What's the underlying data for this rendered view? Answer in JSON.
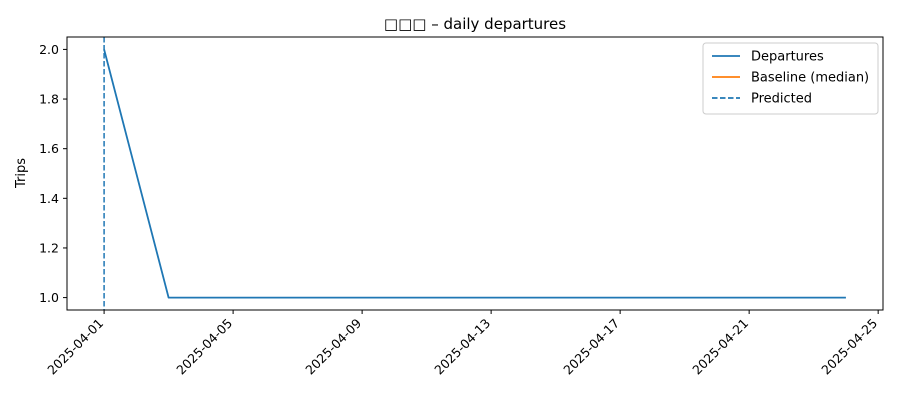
{
  "chart_data": {
    "type": "line",
    "title": "□□□ – daily departures",
    "xlabel": "",
    "ylabel": "Trips",
    "x_ticks": [
      "2025-04-01",
      "2025-04-05",
      "2025-04-09",
      "2025-04-13",
      "2025-04-17",
      "2025-04-21",
      "2025-04-25"
    ],
    "xlim": [
      "2025-04-01",
      "2025-04-25"
    ],
    "y_ticks": [
      "1.0",
      "1.2",
      "1.4",
      "1.6",
      "1.8",
      "2.0"
    ],
    "ylim": [
      0.95,
      2.05
    ],
    "grid": false,
    "legend_position": "top-right",
    "series": [
      {
        "name": "Departures",
        "color": "#1f77b4",
        "style": "solid",
        "points": [
          {
            "x": "2025-04-01",
            "y": 2
          },
          {
            "x": "2025-04-03",
            "y": 1
          },
          {
            "x": "2025-04-04",
            "y": 1
          },
          {
            "x": "2025-04-05",
            "y": 1
          },
          {
            "x": "2025-04-06",
            "y": 1
          },
          {
            "x": "2025-04-07",
            "y": 1
          },
          {
            "x": "2025-04-08",
            "y": 1
          },
          {
            "x": "2025-04-09",
            "y": 1
          },
          {
            "x": "2025-04-10",
            "y": 1
          },
          {
            "x": "2025-04-11",
            "y": 1
          },
          {
            "x": "2025-04-12",
            "y": 1
          },
          {
            "x": "2025-04-13",
            "y": 1
          },
          {
            "x": "2025-04-14",
            "y": 1
          },
          {
            "x": "2025-04-15",
            "y": 1
          },
          {
            "x": "2025-04-16",
            "y": 1
          },
          {
            "x": "2025-04-17",
            "y": 1
          },
          {
            "x": "2025-04-18",
            "y": 1
          },
          {
            "x": "2025-04-19",
            "y": 1
          },
          {
            "x": "2025-04-20",
            "y": 1
          },
          {
            "x": "2025-04-21",
            "y": 1
          },
          {
            "x": "2025-04-22",
            "y": 1
          },
          {
            "x": "2025-04-23",
            "y": 1
          },
          {
            "x": "2025-04-24",
            "y": 1
          }
        ]
      },
      {
        "name": "Baseline (median)",
        "color": "#ff7f0e",
        "style": "solid",
        "points": []
      }
    ],
    "vlines": [
      {
        "name": "Predicted",
        "x": "2025-04-01",
        "color": "#1f77b4",
        "style": "dashed"
      }
    ]
  }
}
